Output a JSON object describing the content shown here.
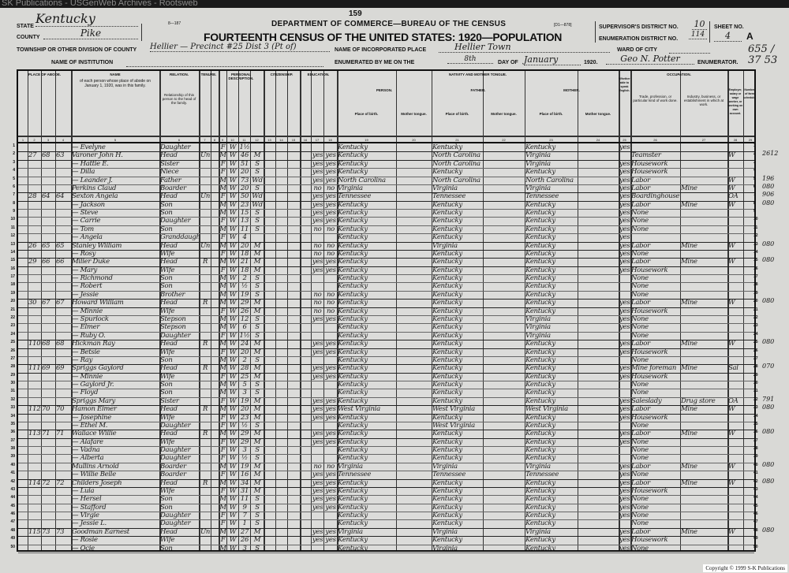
{
  "watermark": "SK Publications - USGenWeb Archives - Rootsweb",
  "page_number": "159",
  "form_number": "8—187",
  "form_code": "[D1—878]",
  "department": "DEPARTMENT OF COMMERCE—BUREAU OF THE CENSUS",
  "title": "FOURTEENTH CENSUS OF THE UNITED STATES: 1920—POPULATION",
  "fields": {
    "state_label": "STATE",
    "state": "Kentucky",
    "county_label": "COUNTY",
    "county": "Pike",
    "township_label": "TOWNSHIP OR OTHER DIVISION OF COUNTY",
    "township": "Hellier — Precinct #25  Dist 3 (Pt of)",
    "institution_label": "NAME OF INSTITUTION",
    "place_label": "NAME OF INCORPORATED PLACE",
    "place": "Hellier Town",
    "enumerated_label": "ENUMERATED BY ME ON THE",
    "day": "8th",
    "day_of_label": "DAY OF",
    "month": "January",
    "year": "1920.",
    "supervisor_label": "SUPERVISOR'S DISTRICT NO.",
    "supervisor": "10",
    "ed_label": "ENUMERATION DISTRICT NO.",
    "ed": "114",
    "sheet_label": "SHEET NO.",
    "sheet": "4",
    "sheet_side": "A",
    "ward_label": "WARD OF CITY",
    "enumerator_label": "ENUMERATOR.",
    "enumerator": "Geo N. Potter",
    "margin_note": "655 / 37 53"
  },
  "headers": {
    "place_of_abode": "PLACE OF ABODE.",
    "name": "NAME",
    "name_desc": "of each person whose place of abode on January 1, 1920, was in this family.",
    "relation": "RELATION.",
    "relation_desc": "Relationship of this person to the head of the family.",
    "tenure": "TENURE.",
    "personal": "PERSONAL DESCRIPTION.",
    "citizenship": "CITIZENSHIP.",
    "education": "EDUCATION.",
    "nativity": "NATIVITY AND MOTHER TONGUE.",
    "person": "PERSON.",
    "father": "FATHER.",
    "mother": "MOTHER.",
    "place_of_birth": "Place of birth.",
    "mother_tongue": "Mother tongue.",
    "english": "Whether able to speak English.",
    "occupation": "OCCUPATION.",
    "trade": "Trade, profession, or particular kind of work done.",
    "industry": "Industry, business, or establishment in which at work.",
    "class": "Employer, salary or wage worker, or working on own account.",
    "schedule": "Number of farm schedule."
  },
  "column_numbers": [
    "1",
    "2",
    "3",
    "4",
    "5",
    "6",
    "7",
    "8",
    "9",
    "10",
    "11",
    "12",
    "13",
    "14",
    "15",
    "16",
    "17",
    "18",
    "19",
    "20",
    "21",
    "22",
    "23",
    "24",
    "25",
    "26",
    "27",
    "28",
    "29"
  ],
  "rows": [
    {
      "name": "— Evelyne",
      "rel": "Daughter",
      "sex": "F",
      "color": "W",
      "age": "1½",
      "birth": "Kentucky",
      "fb": "Kentucky",
      "mb": "Kentucky",
      "eng": "yes"
    },
    {
      "h": "27",
      "d": "68",
      "f": "63",
      "name": "Varoner John H.",
      "rel": "Head",
      "own": "Un",
      "sex": "M",
      "color": "W",
      "age": "46",
      "mar": "M",
      "rw": "yes",
      "birth": "Kentucky",
      "fb": "North Carolina",
      "mb": "Virginia",
      "trade": "Teamster",
      "cls": "W",
      "code": "2612"
    },
    {
      "name": "— Hattie E.",
      "rel": "Sister",
      "sex": "F",
      "color": "W",
      "age": "51",
      "mar": "S",
      "rw": "yes",
      "birth": "Kentucky",
      "fb": "North Carolina",
      "mb": "Virginia",
      "eng": "yes",
      "trade": "Housework"
    },
    {
      "name": "— Dilla",
      "rel": "Niece",
      "sex": "F",
      "color": "W",
      "age": "20",
      "mar": "S",
      "rw": "yes",
      "birth": "Kentucky",
      "fb": "Kentucky",
      "mb": "Kentucky",
      "eng": "yes",
      "trade": "Housework"
    },
    {
      "name": "— Leander J.",
      "rel": "Father",
      "sex": "M",
      "color": "W",
      "age": "73",
      "mar": "Wd",
      "rw": "yes",
      "birth": "North Carolina",
      "fb": "North Carolina",
      "mb": "North Carolina",
      "eng": "yes",
      "trade": "Labor",
      "cls": "W",
      "code": "196"
    },
    {
      "name": "Perkins Claud",
      "rel": "Boarder",
      "sex": "M",
      "color": "W",
      "age": "20",
      "mar": "S",
      "rw": "no",
      "birth": "Virginia",
      "fb": "Virginia",
      "mb": "Virginia",
      "eng": "yes",
      "trade": "Labor",
      "ind": "Mine",
      "cls": "W",
      "code": "080"
    },
    {
      "h": "28",
      "d": "64",
      "f": "64",
      "name": "Sexton Angela",
      "rel": "Head",
      "own": "Un",
      "sex": "F",
      "color": "W",
      "age": "50",
      "mar": "Wd",
      "rw": "yes",
      "birth": "Tennessee",
      "fb": "Tennessee",
      "mb": "Tennessee",
      "eng": "yes",
      "trade": "Boardinghouse",
      "cls": "OA",
      "code": "906"
    },
    {
      "name": "— Jackson",
      "rel": "Son",
      "sex": "M",
      "color": "W",
      "age": "23",
      "mar": "Wd",
      "rw": "yes",
      "birth": "Kentucky",
      "fb": "Kentucky",
      "mb": "Kentucky",
      "eng": "yes",
      "trade": "Labor",
      "ind": "Mine",
      "cls": "W",
      "code": "080"
    },
    {
      "name": "— Steve",
      "rel": "Son",
      "sex": "M",
      "color": "W",
      "age": "15",
      "mar": "S",
      "rw": "yes",
      "birth": "Kentucky",
      "fb": "Kentucky",
      "mb": "Kentucky",
      "eng": "yes",
      "trade": "None"
    },
    {
      "name": "— Carrie",
      "rel": "Daughter",
      "sex": "F",
      "color": "W",
      "age": "13",
      "mar": "S",
      "rw": "yes",
      "birth": "Kentucky",
      "fb": "Kentucky",
      "mb": "Kentucky",
      "eng": "yes",
      "trade": "None"
    },
    {
      "name": "— Tom",
      "rel": "Son",
      "sex": "M",
      "color": "W",
      "age": "11",
      "mar": "S",
      "rw": "no",
      "birth": "Kentucky",
      "fb": "Kentucky",
      "mb": "Kentucky",
      "eng": "yes",
      "trade": "None"
    },
    {
      "name": "— Angela",
      "rel": "Granddaughter",
      "sex": "F",
      "color": "W",
      "age": "4",
      "birth": "Kentucky",
      "fb": "Kentucky",
      "mb": "Kentucky",
      "eng": "yes"
    },
    {
      "h": "26",
      "d": "65",
      "f": "65",
      "name": "Stanley William",
      "rel": "Head",
      "own": "Un",
      "sex": "M",
      "color": "W",
      "age": "20",
      "mar": "M",
      "rw": "no",
      "birth": "Kentucky",
      "fb": "Virginia",
      "mb": "Kentucky",
      "eng": "yes",
      "trade": "Labor",
      "ind": "Mine",
      "cls": "W",
      "code": "080"
    },
    {
      "name": "— Rosy",
      "rel": "Wife",
      "sex": "F",
      "color": "W",
      "age": "18",
      "mar": "M",
      "rw": "no",
      "birth": "Kentucky",
      "fb": "Kentucky",
      "mb": "Kentucky",
      "eng": "yes",
      "trade": "None"
    },
    {
      "h": "29",
      "d": "66",
      "f": "66",
      "name": "Miller Duke",
      "rel": "Head",
      "own": "R",
      "sex": "M",
      "color": "W",
      "age": "21",
      "mar": "M",
      "rw": "yes",
      "birth": "Kentucky",
      "fb": "Kentucky",
      "mb": "Kentucky",
      "eng": "yes",
      "trade": "Labor",
      "ind": "Mine",
      "cls": "W",
      "code": "080"
    },
    {
      "name": "— Mary",
      "rel": "Wife",
      "sex": "F",
      "color": "W",
      "age": "18",
      "mar": "M",
      "rw": "yes",
      "birth": "Kentucky",
      "fb": "Kentucky",
      "mb": "Kentucky",
      "eng": "yes",
      "trade": "Housework"
    },
    {
      "name": "— Richmond",
      "rel": "Son",
      "sex": "M",
      "color": "W",
      "age": "2",
      "mar": "S",
      "birth": "Kentucky",
      "fb": "Kentucky",
      "mb": "Kentucky",
      "trade": "None"
    },
    {
      "name": "— Robert",
      "rel": "Son",
      "sex": "M",
      "color": "W",
      "age": "½",
      "mar": "S",
      "birth": "Kentucky",
      "fb": "Kentucky",
      "mb": "Kentucky",
      "trade": "None"
    },
    {
      "name": "— Jessie",
      "rel": "Brother",
      "sex": "M",
      "color": "W",
      "age": "19",
      "mar": "S",
      "rw": "no",
      "birth": "Kentucky",
      "fb": "Kentucky",
      "mb": "Kentucky",
      "trade": "None"
    },
    {
      "h": "30",
      "d": "67",
      "f": "67",
      "name": "Howard William",
      "rel": "Head",
      "own": "R",
      "sex": "M",
      "color": "W",
      "age": "29",
      "mar": "M",
      "rw": "no",
      "birth": "Kentucky",
      "fb": "Kentucky",
      "mb": "Kentucky",
      "eng": "yes",
      "trade": "Labor",
      "ind": "Mine",
      "cls": "W",
      "code": "080"
    },
    {
      "name": "— Minnie",
      "rel": "Wife",
      "sex": "F",
      "color": "W",
      "age": "26",
      "mar": "M",
      "rw": "no",
      "birth": "Kentucky",
      "fb": "Kentucky",
      "mb": "Kentucky",
      "eng": "yes",
      "trade": "Housework"
    },
    {
      "name": "— Spurlock",
      "rel": "Stepson",
      "sex": "M",
      "color": "W",
      "age": "12",
      "mar": "S",
      "rw": "yes",
      "birth": "Kentucky",
      "fb": "Kentucky",
      "mb": "Virginia",
      "eng": "yes",
      "trade": "None"
    },
    {
      "name": "— Elmer",
      "rel": "Stepson",
      "sex": "M",
      "color": "W",
      "age": "6",
      "mar": "S",
      "birth": "Kentucky",
      "fb": "Kentucky",
      "mb": "Virginia",
      "eng": "yes",
      "trade": "None"
    },
    {
      "name": "— Ruby O.",
      "rel": "Daughter",
      "sex": "F",
      "color": "W",
      "age": "1½",
      "mar": "S",
      "birth": "Kentucky",
      "fb": "Kentucky",
      "mb": "Virginia",
      "trade": "None"
    },
    {
      "h": "110",
      "d": "68",
      "f": "68",
      "name": "Hickman Ray",
      "rel": "Head",
      "own": "R",
      "sex": "M",
      "color": "W",
      "age": "24",
      "mar": "M",
      "rw": "yes",
      "birth": "Kentucky",
      "fb": "Kentucky",
      "mb": "Kentucky",
      "eng": "yes",
      "trade": "Labor",
      "ind": "Mine",
      "cls": "W",
      "code": "080"
    },
    {
      "name": "— Betsie",
      "rel": "Wife",
      "sex": "F",
      "color": "W",
      "age": "20",
      "mar": "M",
      "rw": "yes",
      "birth": "Kentucky",
      "fb": "Kentucky",
      "mb": "Kentucky",
      "eng": "yes",
      "trade": "Housework"
    },
    {
      "name": "— Ray",
      "rel": "Son",
      "sex": "M",
      "color": "W",
      "age": "2",
      "mar": "S",
      "birth": "Kentucky",
      "fb": "Kentucky",
      "mb": "Kentucky",
      "trade": "None"
    },
    {
      "h": "111",
      "d": "69",
      "f": "69",
      "name": "Spriggs Gaylord",
      "rel": "Head",
      "own": "R",
      "sex": "M",
      "color": "W",
      "age": "28",
      "mar": "M",
      "rw": "yes",
      "birth": "Kentucky",
      "fb": "Kentucky",
      "mb": "Kentucky",
      "eng": "yes",
      "trade": "Mine foreman",
      "ind": "Mine",
      "cls": "Sal",
      "code": "070"
    },
    {
      "name": "— Minnie",
      "rel": "Wife",
      "sex": "F",
      "color": "W",
      "age": "25",
      "mar": "M",
      "rw": "yes",
      "birth": "Kentucky",
      "fb": "Kentucky",
      "mb": "Kentucky",
      "eng": "yes",
      "trade": "Housework"
    },
    {
      "name": "— Gaylord Jr.",
      "rel": "Son",
      "sex": "M",
      "color": "W",
      "age": "5",
      "mar": "S",
      "birth": "Kentucky",
      "fb": "Kentucky",
      "mb": "Kentucky",
      "trade": "None"
    },
    {
      "name": "— Floyd",
      "rel": "Son",
      "sex": "M",
      "color": "W",
      "age": "3",
      "mar": "S",
      "birth": "Kentucky",
      "fb": "Kentucky",
      "mb": "Kentucky",
      "trade": "None"
    },
    {
      "name": "Spriggs Mary",
      "rel": "Sister",
      "sex": "F",
      "color": "W",
      "age": "19",
      "mar": "M",
      "rw": "yes",
      "birth": "Kentucky",
      "fb": "Kentucky",
      "mb": "Kentucky",
      "eng": "yes",
      "trade": "Saleslady",
      "ind": "Drug store",
      "cls": "OA",
      "code": "791"
    },
    {
      "h": "112",
      "d": "70",
      "f": "70",
      "name": "Hamon Elmer",
      "rel": "Head",
      "own": "R",
      "sex": "M",
      "color": "W",
      "age": "20",
      "mar": "M",
      "rw": "yes",
      "birth": "West Virginia",
      "fb": "West Virginia",
      "mb": "West Virginia",
      "eng": "yes",
      "trade": "Labor",
      "ind": "Mine",
      "cls": "W",
      "code": "080"
    },
    {
      "name": "— Josephine",
      "rel": "Wife",
      "sex": "F",
      "color": "W",
      "age": "23",
      "mar": "M",
      "rw": "yes",
      "birth": "Kentucky",
      "fb": "Kentucky",
      "mb": "Kentucky",
      "eng": "yes",
      "trade": "Housework"
    },
    {
      "name": "— Ethel M.",
      "rel": "Daughter",
      "sex": "F",
      "color": "W",
      "age": "½",
      "mar": "S",
      "birth": "Kentucky",
      "fb": "West Virginia",
      "mb": "Kentucky",
      "trade": "None"
    },
    {
      "h": "113",
      "d": "71",
      "f": "71",
      "name": "Wallace Willie",
      "rel": "Head",
      "own": "R",
      "sex": "M",
      "color": "W",
      "age": "29",
      "mar": "M",
      "rw": "yes",
      "birth": "Kentucky",
      "fb": "Kentucky",
      "mb": "Kentucky",
      "eng": "yes",
      "trade": "Labor",
      "ind": "Mine",
      "cls": "W",
      "code": "080"
    },
    {
      "name": "— Alafare",
      "rel": "Wife",
      "sex": "F",
      "color": "W",
      "age": "29",
      "mar": "M",
      "rw": "yes",
      "birth": "Kentucky",
      "fb": "Kentucky",
      "mb": "Kentucky",
      "eng": "yes",
      "trade": "None"
    },
    {
      "name": "— Vadna",
      "rel": "Daughter",
      "sex": "F",
      "color": "W",
      "age": "3",
      "mar": "S",
      "birth": "Kentucky",
      "fb": "Kentucky",
      "mb": "Kentucky",
      "trade": "None"
    },
    {
      "name": "— Alberta",
      "rel": "Daughter",
      "sex": "F",
      "color": "W",
      "age": "½",
      "mar": "S",
      "birth": "Kentucky",
      "fb": "Kentucky",
      "mb": "Kentucky",
      "trade": "None"
    },
    {
      "name": "Mullins Arnold",
      "rel": "Boarder",
      "sex": "M",
      "color": "W",
      "age": "19",
      "mar": "M",
      "rw": "no",
      "birth": "Virginia",
      "fb": "Virginia",
      "mb": "Virginia",
      "eng": "yes",
      "trade": "Labor",
      "ind": "Mine",
      "cls": "W",
      "code": "080"
    },
    {
      "name": "— Willie Belle",
      "rel": "Boarder",
      "sex": "F",
      "color": "W",
      "age": "16",
      "mar": "M",
      "rw": "yes",
      "birth": "Tennessee",
      "fb": "Tennessee",
      "mb": "Tennessee",
      "eng": "yes",
      "trade": "None"
    },
    {
      "h": "114",
      "d": "72",
      "f": "72",
      "name": "Childers Joseph",
      "rel": "Head",
      "own": "R",
      "sex": "M",
      "color": "W",
      "age": "34",
      "mar": "M",
      "rw": "yes",
      "birth": "Kentucky",
      "fb": "Kentucky",
      "mb": "Kentucky",
      "eng": "yes",
      "trade": "Labor",
      "ind": "Mine",
      "cls": "W",
      "code": "080"
    },
    {
      "name": "— Lula",
      "rel": "Wife",
      "sex": "F",
      "color": "W",
      "age": "31",
      "mar": "M",
      "rw": "yes",
      "birth": "Kentucky",
      "fb": "Kentucky",
      "mb": "Kentucky",
      "eng": "yes",
      "trade": "Housework"
    },
    {
      "name": "— Hersel",
      "rel": "Son",
      "sex": "M",
      "color": "W",
      "age": "11",
      "mar": "S",
      "rw": "yes",
      "birth": "Kentucky",
      "fb": "Kentucky",
      "mb": "Kentucky",
      "eng": "yes",
      "trade": "None"
    },
    {
      "name": "— Stafford",
      "rel": "Son",
      "sex": "M",
      "color": "W",
      "age": "9",
      "mar": "S",
      "rw": "yes",
      "birth": "Kentucky",
      "fb": "Kentucky",
      "mb": "Kentucky",
      "eng": "yes",
      "trade": "None"
    },
    {
      "name": "— Virgie",
      "rel": "Daughter",
      "sex": "F",
      "color": "W",
      "age": "7",
      "mar": "S",
      "birth": "Kentucky",
      "fb": "Kentucky",
      "mb": "Kentucky",
      "eng": "yes",
      "trade": "None"
    },
    {
      "name": "— Jessie L.",
      "rel": "Daughter",
      "sex": "F",
      "color": "W",
      "age": "1",
      "mar": "S",
      "birth": "Kentucky",
      "fb": "Kentucky",
      "mb": "Kentucky",
      "trade": "None"
    },
    {
      "h": "115",
      "d": "73",
      "f": "73",
      "name": "Goodman Earnest",
      "rel": "Head",
      "own": "Un",
      "sex": "M",
      "color": "W",
      "age": "27",
      "mar": "M",
      "rw": "yes",
      "birth": "Virginia",
      "fb": "Virginia",
      "mb": "Virginia",
      "eng": "yes",
      "trade": "Labor",
      "ind": "Mine",
      "cls": "W",
      "code": "080"
    },
    {
      "name": "— Rosie",
      "rel": "Wife",
      "sex": "F",
      "color": "W",
      "age": "26",
      "mar": "M",
      "rw": "yes",
      "birth": "Kentucky",
      "fb": "Kentucky",
      "mb": "Kentucky",
      "eng": "yes",
      "trade": "Housework"
    },
    {
      "name": "— Ocie",
      "rel": "Son",
      "sex": "M",
      "color": "W",
      "age": "3",
      "mar": "S",
      "birth": "Kentucky",
      "fb": "Virginia",
      "mb": "Kentucky",
      "eng": "yes",
      "trade": "None"
    }
  ],
  "copyright": "Copyright © 1999 S-K Publications"
}
